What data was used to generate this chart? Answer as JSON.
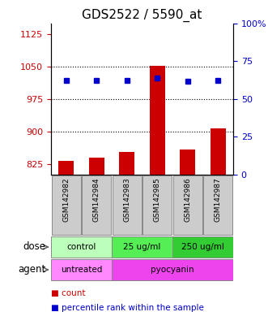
{
  "title": "GDS2522 / 5590_at",
  "samples": [
    "GSM142982",
    "GSM142984",
    "GSM142983",
    "GSM142985",
    "GSM142986",
    "GSM142987"
  ],
  "counts": [
    832,
    840,
    852,
    1051,
    858,
    908
  ],
  "percentile_ranks": [
    83,
    83,
    83,
    85,
    82,
    83
  ],
  "left_ylim": [
    800,
    1150
  ],
  "left_yticks": [
    825,
    900,
    975,
    1050,
    1125
  ],
  "right_ylim": [
    0,
    133.33
  ],
  "right_yticks": [
    0,
    33.33,
    66.67,
    100,
    133.33
  ],
  "right_yticklabels": [
    "0",
    "25",
    "50",
    "75",
    "100%"
  ],
  "bar_color": "#CC0000",
  "square_color": "#0000CC",
  "grid_color": "#000000",
  "left_tick_color": "#CC0000",
  "right_tick_color": "#0000CC",
  "title_color": "#000000",
  "dose_label": "dose",
  "agent_label": "agent",
  "legend_count_label": "count",
  "legend_pct_label": "percentile rank within the sample",
  "dose_groups": [
    {
      "label": "control",
      "start": 0,
      "end": 2,
      "color": "#BBFFBB"
    },
    {
      "label": "25 ug/ml",
      "start": 2,
      "end": 4,
      "color": "#55EE55"
    },
    {
      "label": "250 ug/ml",
      "start": 4,
      "end": 6,
      "color": "#33CC33"
    }
  ],
  "agent_groups": [
    {
      "label": "untreated",
      "start": 0,
      "end": 2,
      "color": "#FF88FF"
    },
    {
      "label": "pyocyanin",
      "start": 2,
      "end": 6,
      "color": "#EE44EE"
    }
  ],
  "sample_box_color": "#CCCCCC",
  "sample_box_edge": "#888888"
}
